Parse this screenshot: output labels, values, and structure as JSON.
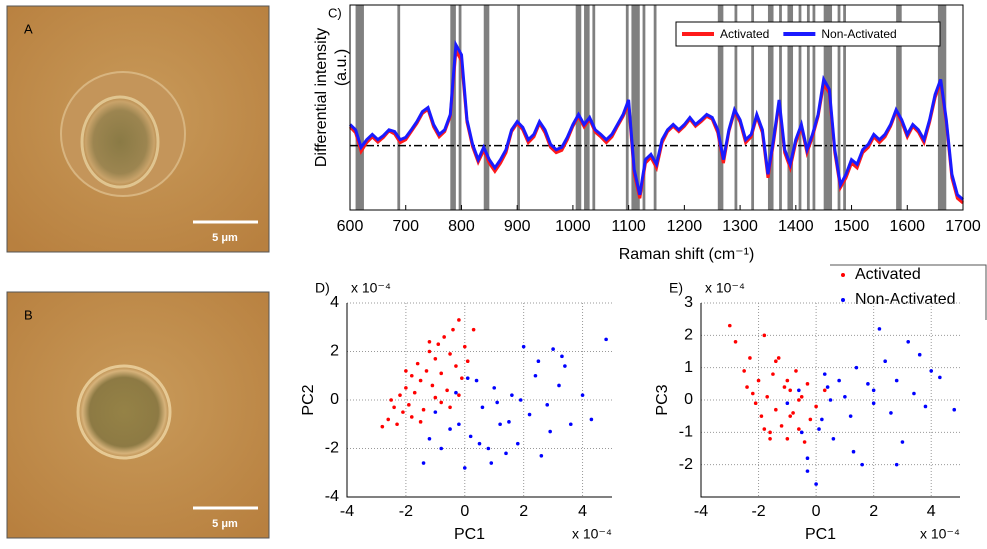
{
  "panels": [
    {
      "label": "A",
      "scale_bar": "5 μm"
    },
    {
      "label": "B",
      "scale_bar": "5 μm"
    }
  ],
  "chart_data": [
    {
      "type": "line",
      "panel": "C)",
      "ylabel": "Differential intensity",
      "ylabel_unit": "(a.u.)",
      "xlabel": "Raman shift (cm⁻¹)",
      "xlim": [
        600,
        1700
      ],
      "xticks": [
        600,
        700,
        800,
        900,
        1000,
        1100,
        1200,
        1300,
        1400,
        1500,
        1600,
        1700
      ],
      "ylim": [
        -1.1,
        2.4
      ],
      "legend": "upper right",
      "bands": [
        [
          610,
          625
        ],
        [
          685,
          690
        ],
        [
          780,
          790
        ],
        [
          795,
          800
        ],
        [
          840,
          850
        ],
        [
          900,
          905
        ],
        [
          1005,
          1015
        ],
        [
          1020,
          1030
        ],
        [
          1035,
          1040
        ],
        [
          1095,
          1100
        ],
        [
          1105,
          1120
        ],
        [
          1125,
          1130
        ],
        [
          1145,
          1150
        ],
        [
          1260,
          1270
        ],
        [
          1290,
          1295
        ],
        [
          1320,
          1325
        ],
        [
          1350,
          1360
        ],
        [
          1370,
          1375
        ],
        [
          1385,
          1395
        ],
        [
          1405,
          1410
        ],
        [
          1420,
          1425
        ],
        [
          1430,
          1435
        ],
        [
          1450,
          1465
        ],
        [
          1475,
          1480
        ],
        [
          1485,
          1490
        ],
        [
          1580,
          1590
        ],
        [
          1655,
          1670
        ]
      ],
      "x": [
        600,
        610,
        620,
        630,
        640,
        650,
        660,
        670,
        680,
        690,
        700,
        710,
        720,
        730,
        740,
        750,
        760,
        770,
        780,
        790,
        800,
        810,
        820,
        830,
        840,
        850,
        860,
        870,
        880,
        890,
        900,
        910,
        920,
        930,
        940,
        950,
        960,
        970,
        980,
        990,
        1000,
        1010,
        1020,
        1030,
        1040,
        1050,
        1060,
        1070,
        1080,
        1090,
        1100,
        1110,
        1120,
        1130,
        1140,
        1150,
        1160,
        1170,
        1180,
        1190,
        1200,
        1210,
        1220,
        1230,
        1240,
        1250,
        1260,
        1270,
        1280,
        1290,
        1300,
        1310,
        1320,
        1330,
        1340,
        1350,
        1360,
        1370,
        1380,
        1390,
        1400,
        1410,
        1420,
        1430,
        1440,
        1450,
        1460,
        1470,
        1480,
        1490,
        1500,
        1510,
        1520,
        1530,
        1540,
        1550,
        1560,
        1570,
        1580,
        1590,
        1600,
        1610,
        1620,
        1630,
        1640,
        1650,
        1660,
        1670,
        1680,
        1690,
        1700
      ],
      "series": [
        {
          "name": "Activated",
          "color": "#ff1a1a",
          "values": [
            0.32,
            0.22,
            -0.1,
            0.05,
            0.15,
            0.06,
            0.14,
            0.25,
            0.2,
            0.05,
            0.1,
            0.24,
            0.38,
            0.55,
            0.62,
            0.32,
            0.15,
            0.24,
            0.5,
            1.62,
            1.45,
            0.4,
            -0.02,
            -0.28,
            -0.08,
            -0.3,
            -0.44,
            -0.3,
            -0.12,
            0.24,
            0.38,
            0.27,
            0.05,
            0.15,
            0.38,
            0.22,
            -0.03,
            -0.12,
            -0.08,
            0.1,
            0.33,
            0.5,
            0.32,
            0.45,
            0.23,
            0.15,
            0.05,
            0.15,
            0.33,
            0.5,
            0.72,
            -0.48,
            -0.9,
            -0.3,
            -0.2,
            -0.38,
            0.05,
            0.24,
            0.33,
            0.24,
            0.33,
            0.45,
            0.33,
            0.41,
            0.5,
            0.45,
            0.22,
            -0.3,
            0.24,
            0.58,
            0.4,
            0.05,
            0.15,
            0.5,
            0.22,
            -0.55,
            0.05,
            0.72,
            -0.12,
            -0.38,
            0.05,
            0.32,
            -0.12,
            0.15,
            0.5,
            1.05,
            0.9,
            -0.12,
            -0.72,
            -0.55,
            -0.3,
            -0.38,
            -0.12,
            -0.03,
            0.15,
            0.05,
            0.15,
            0.33,
            0.58,
            0.4,
            0.15,
            0.33,
            0.23,
            0.05,
            0.4,
            0.82,
            1.08,
            0.4,
            -0.55,
            -0.9,
            -0.98
          ]
        },
        {
          "name": "Non-Activated",
          "color": "#1a1aff",
          "values": [
            0.36,
            0.27,
            -0.03,
            0.1,
            0.19,
            0.1,
            0.17,
            0.27,
            0.24,
            0.1,
            0.14,
            0.27,
            0.41,
            0.58,
            0.65,
            0.36,
            0.19,
            0.27,
            0.53,
            1.72,
            1.55,
            0.44,
            0.02,
            -0.24,
            -0.03,
            -0.24,
            -0.38,
            -0.24,
            -0.07,
            0.27,
            0.41,
            0.31,
            0.1,
            0.19,
            0.41,
            0.27,
            0.02,
            -0.07,
            -0.03,
            0.14,
            0.36,
            0.53,
            0.36,
            0.48,
            0.27,
            0.19,
            0.1,
            0.19,
            0.36,
            0.53,
            0.78,
            -0.41,
            -0.84,
            -0.24,
            -0.15,
            -0.32,
            0.1,
            0.27,
            0.36,
            0.27,
            0.36,
            0.48,
            0.36,
            0.44,
            0.53,
            0.48,
            0.27,
            -0.24,
            0.27,
            0.61,
            0.44,
            0.1,
            0.19,
            0.53,
            0.27,
            -0.49,
            0.1,
            0.78,
            -0.07,
            -0.32,
            0.1,
            0.36,
            -0.07,
            0.19,
            0.53,
            1.13,
            0.96,
            -0.07,
            -0.67,
            -0.49,
            -0.24,
            -0.32,
            -0.07,
            0.02,
            0.19,
            0.1,
            0.19,
            0.36,
            0.61,
            0.44,
            0.19,
            0.36,
            0.27,
            0.1,
            0.44,
            0.87,
            1.13,
            0.44,
            -0.49,
            -0.84,
            -0.92
          ]
        }
      ]
    },
    {
      "type": "scatter",
      "panel": "D)",
      "xlabel": "PC1",
      "ylabel": "PC2",
      "x_multiplier": "x 10⁻⁴",
      "y_multiplier": "x 10⁻⁴",
      "xlim": [
        -4,
        5
      ],
      "xticks": [
        -4,
        -2,
        0,
        2,
        4
      ],
      "ylim": [
        -4,
        4
      ],
      "yticks": [
        -4,
        -2,
        0,
        2,
        4
      ],
      "grid": true,
      "legend": "upper right",
      "series": [
        {
          "name": "Activated",
          "color": "#ff0000",
          "x": [
            -2.8,
            -2.6,
            -2.4,
            -2.3,
            -2.2,
            -2.1,
            -2.0,
            -1.9,
            -1.8,
            -1.7,
            -1.6,
            -1.5,
            -1.4,
            -1.3,
            -1.2,
            -1.1,
            -1.0,
            -0.9,
            -0.8,
            -0.7,
            -0.6,
            -0.5,
            -0.4,
            -0.3,
            -0.2,
            -0.1,
            0.0,
            0.1,
            0.3,
            -1.5,
            -2.0,
            -1.0,
            -0.5,
            -2.5,
            -1.8,
            -0.2,
            -1.2,
            -0.8
          ],
          "values": [
            -1.1,
            -0.8,
            -0.3,
            -1.0,
            0.2,
            -0.5,
            0.5,
            -0.2,
            1.0,
            0.3,
            1.5,
            0.8,
            -0.4,
            1.2,
            2.0,
            0.6,
            1.7,
            2.3,
            1.1,
            2.6,
            0.4,
            1.9,
            2.9,
            1.4,
            3.3,
            0.9,
            2.2,
            1.6,
            2.9,
            -0.9,
            1.2,
            0.1,
            -0.3,
            0.0,
            -0.7,
            0.2,
            2.4,
            -0.1
          ]
        },
        {
          "name": "Non-Activated",
          "color": "#0000ff",
          "x": [
            -1.4,
            -1.0,
            -0.8,
            -0.5,
            -0.3,
            0.0,
            0.2,
            0.4,
            0.6,
            0.8,
            1.0,
            1.2,
            1.4,
            1.6,
            1.8,
            2.0,
            2.2,
            2.4,
            2.6,
            2.8,
            3.0,
            3.2,
            3.4,
            3.6,
            4.0,
            4.3,
            4.8,
            0.5,
            1.5,
            2.5,
            -0.2,
            0.9,
            1.9,
            2.9,
            3.3,
            0.1,
            -1.2,
            1.1
          ],
          "values": [
            -2.6,
            -0.5,
            -2.0,
            -1.2,
            0.3,
            -2.8,
            -1.5,
            0.8,
            -0.3,
            -2.0,
            0.5,
            -1.0,
            -2.2,
            0.2,
            -1.8,
            2.2,
            -0.6,
            1.0,
            -2.3,
            -0.2,
            2.1,
            0.6,
            1.4,
            -1.0,
            0.2,
            -0.8,
            2.5,
            -1.8,
            -0.9,
            1.6,
            -1.0,
            -2.6,
            0.0,
            -1.3,
            1.8,
            0.9,
            -1.6,
            -0.1
          ]
        }
      ]
    },
    {
      "type": "scatter",
      "panel": "E)",
      "xlabel": "PC1",
      "ylabel": "PC3",
      "x_multiplier": "x 10⁻⁴",
      "y_multiplier": "x 10⁻⁴",
      "xlim": [
        -4,
        5
      ],
      "xticks": [
        -4,
        -2,
        0,
        2,
        4
      ],
      "ylim": [
        -3,
        3
      ],
      "yticks": [
        -2,
        -1,
        0,
        1,
        2,
        3
      ],
      "grid": true,
      "series": [
        {
          "color": "#ff0000",
          "x": [
            -3.0,
            -2.8,
            -2.5,
            -2.3,
            -2.2,
            -2.0,
            -1.9,
            -1.8,
            -1.7,
            -1.6,
            -1.5,
            -1.4,
            -1.3,
            -1.2,
            -1.1,
            -1.0,
            -0.9,
            -0.8,
            -0.7,
            -0.6,
            -0.5,
            -0.4,
            -0.3,
            -0.2,
            0.0,
            0.3,
            -1.8,
            -2.1,
            -1.0,
            -1.4,
            -0.9,
            -2.4,
            -1.6,
            -0.6
          ],
          "values": [
            2.3,
            1.8,
            0.9,
            1.3,
            0.2,
            0.6,
            -0.5,
            2.0,
            0.1,
            -1.0,
            0.8,
            -0.3,
            1.3,
            -0.8,
            0.4,
            -1.2,
            0.3,
            -0.4,
            0.9,
            -0.9,
            0.1,
            -1.3,
            0.5,
            -0.6,
            -0.2,
            0.3,
            -0.9,
            -0.1,
            0.6,
            1.2,
            -0.5,
            0.4,
            -1.2,
            0.0
          ]
        },
        {
          "color": "#0000ff",
          "x": [
            -1.0,
            -0.6,
            -0.3,
            0.0,
            0.2,
            0.4,
            0.6,
            0.8,
            1.0,
            1.2,
            1.4,
            1.6,
            1.8,
            2.0,
            2.2,
            2.4,
            2.6,
            2.8,
            3.0,
            3.2,
            3.4,
            3.6,
            3.8,
            4.0,
            4.3,
            4.8,
            -0.3,
            0.1,
            0.5,
            1.3,
            2.0,
            2.8,
            0.3,
            -0.5
          ],
          "values": [
            -0.1,
            0.3,
            -1.8,
            -2.6,
            -0.6,
            0.4,
            -1.2,
            0.6,
            0.1,
            -0.5,
            1.0,
            -2.0,
            0.5,
            0.3,
            2.2,
            1.2,
            -0.4,
            0.6,
            -1.3,
            1.8,
            0.2,
            1.4,
            -0.2,
            0.9,
            0.7,
            -0.3,
            -2.2,
            -0.9,
            0.0,
            -1.6,
            -0.1,
            -2.0,
            0.8,
            -1.0
          ]
        }
      ]
    }
  ]
}
